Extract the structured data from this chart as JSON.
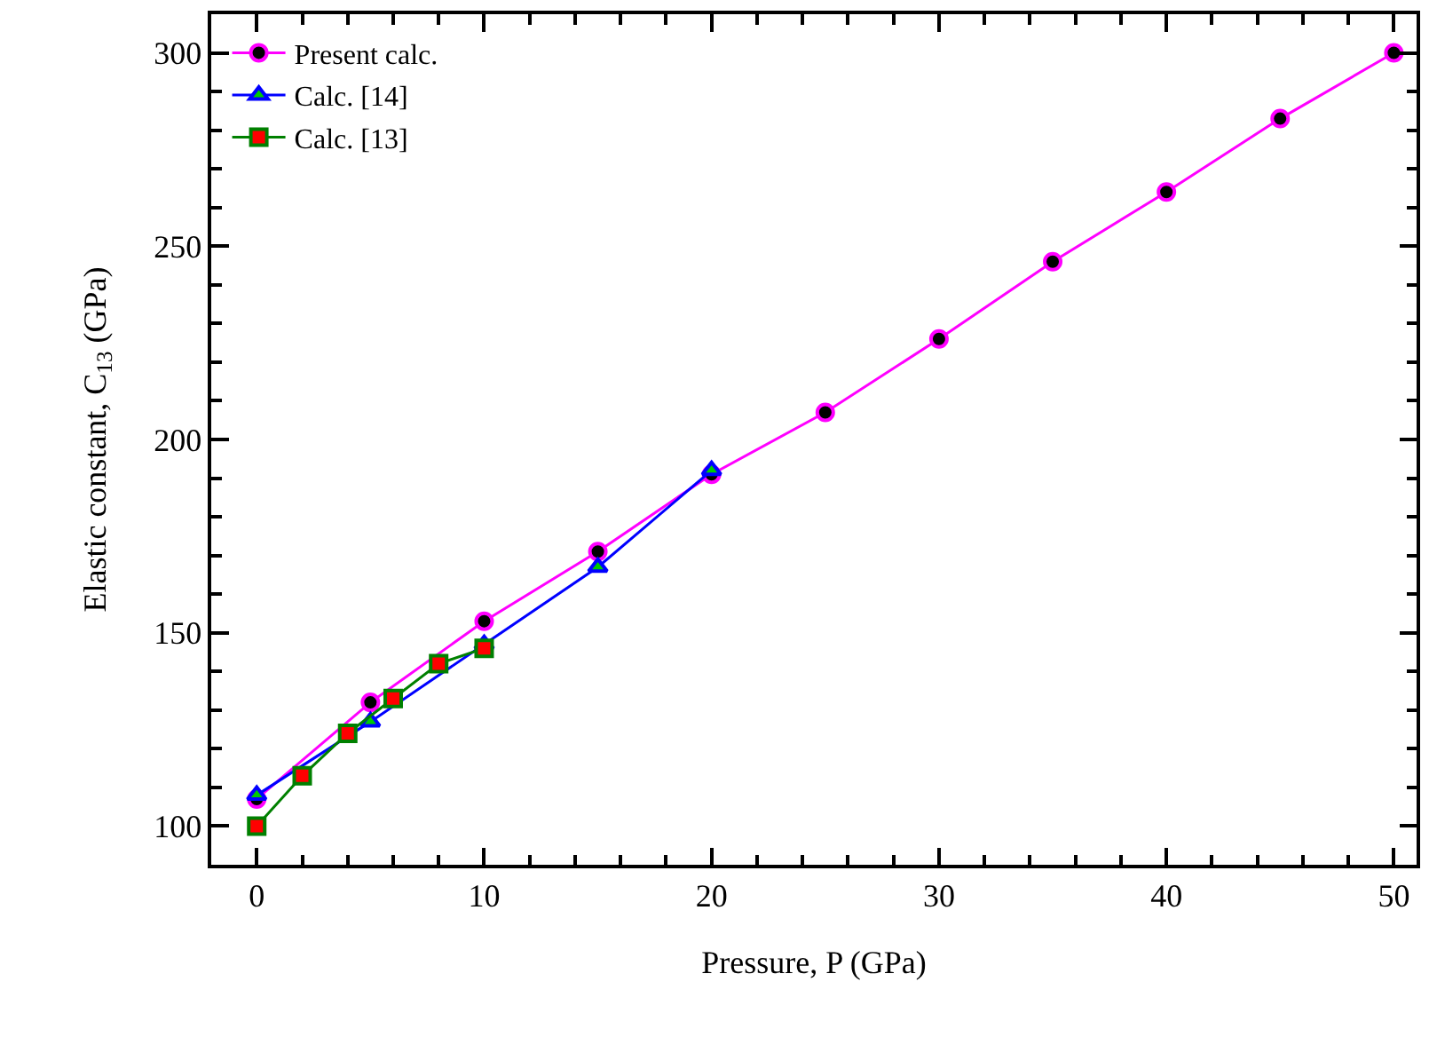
{
  "chart_data": {
    "type": "line",
    "xlabel": "Pressure, P (GPa)",
    "ylabel": "Elastic constant, C$_{13}$ (GPa)",
    "xlim": [
      -2,
      51
    ],
    "ylim": [
      90,
      310
    ],
    "xticks": [
      0,
      10,
      20,
      30,
      40,
      50
    ],
    "yticks": [
      100,
      150,
      200,
      250,
      300
    ],
    "grid": false,
    "legend": "top left",
    "line_style": "solid",
    "series": [
      {
        "name": "Present calc.",
        "color": "#ff00ff",
        "marker": "circle",
        "x": [
          0,
          5,
          10,
          15,
          20,
          25,
          30,
          35,
          40,
          45,
          50
        ],
        "values": [
          107,
          132,
          153,
          171,
          191,
          207,
          226,
          246,
          264,
          283,
          300
        ]
      },
      {
        "name": "Calc. [14]",
        "color": "#0000ff",
        "marker": "triangle",
        "x": [
          0,
          5,
          10,
          15,
          20
        ],
        "values": [
          108,
          127,
          147,
          167,
          192
        ]
      },
      {
        "name": "Calc. [13]",
        "color": "#008000",
        "marker": "square",
        "x": [
          0,
          2,
          4,
          6,
          8,
          10
        ],
        "values": [
          100,
          113,
          124,
          133,
          142,
          146
        ]
      }
    ]
  }
}
